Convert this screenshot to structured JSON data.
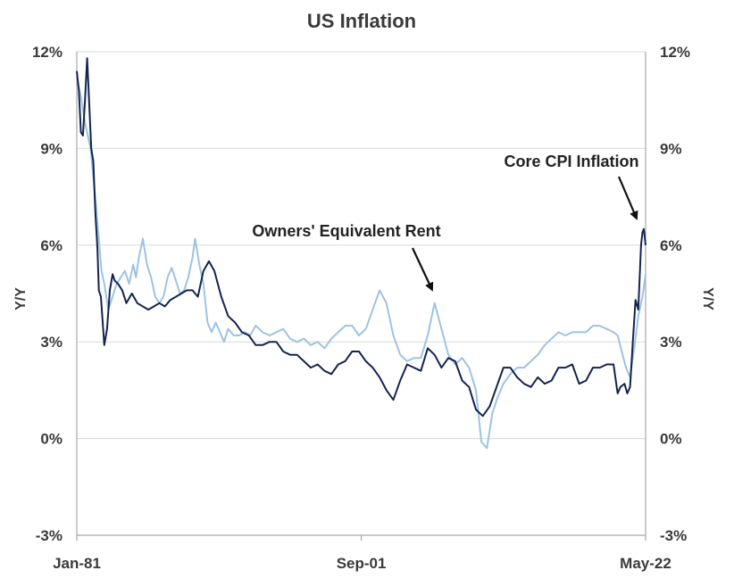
{
  "chart_data": {
    "type": "line",
    "title": "US Inflation",
    "ylabel_left": "Y/Y",
    "ylabel_right": "Y/Y",
    "ylim": [
      -3,
      12
    ],
    "yticks": [
      12,
      9,
      6,
      3,
      0,
      -3
    ],
    "ytick_labels": [
      "12%",
      "9%",
      "6%",
      "3%",
      "0%",
      "-3%"
    ],
    "xlim": [
      1981.0,
      2022.33
    ],
    "xticks": [
      1981.0,
      2001.67,
      2022.33
    ],
    "xtick_labels": [
      "Jan-81",
      "Sep-01",
      "May-22"
    ],
    "grid": "horizontal",
    "colors": {
      "core": "#14244f",
      "oer": "#9dc3e2",
      "grid": "#d9d9d9",
      "axis": "#a6a6a6",
      "text": "#3a3a3a"
    },
    "series": [
      {
        "name": "Core CPI Inflation",
        "x": [
          1981.0,
          1981.15,
          1981.3,
          1981.45,
          1981.6,
          1981.75,
          1981.9,
          1982.05,
          1982.2,
          1982.35,
          1982.5,
          1982.6,
          1982.75,
          1983.0,
          1983.2,
          1983.4,
          1983.6,
          1983.75,
          1984.0,
          1984.3,
          1984.6,
          1985.0,
          1985.4,
          1985.8,
          1986.2,
          1986.6,
          1987.0,
          1987.4,
          1987.8,
          1988.2,
          1988.6,
          1989.0,
          1989.4,
          1989.8,
          1990.2,
          1990.6,
          1991.0,
          1991.5,
          1992.0,
          1992.5,
          1993.0,
          1993.5,
          1994.0,
          1994.5,
          1995.0,
          1995.5,
          1996.0,
          1996.5,
          1997.0,
          1997.5,
          1998.0,
          1998.5,
          1999.0,
          1999.5,
          2000.0,
          2000.5,
          2001.0,
          2001.5,
          2002.0,
          2002.5,
          2003.0,
          2003.5,
          2004.0,
          2004.5,
          2005.0,
          2005.5,
          2006.0,
          2006.5,
          2007.0,
          2007.5,
          2008.0,
          2008.5,
          2009.0,
          2009.5,
          2010.0,
          2010.5,
          2011.0,
          2011.5,
          2012.0,
          2012.5,
          2013.0,
          2013.5,
          2014.0,
          2014.5,
          2015.0,
          2015.5,
          2016.0,
          2016.5,
          2017.0,
          2017.5,
          2018.0,
          2018.5,
          2019.0,
          2019.5,
          2020.0,
          2020.3,
          2020.5,
          2020.8,
          2021.0,
          2021.2,
          2021.4,
          2021.6,
          2021.8,
          2022.0,
          2022.1,
          2022.2,
          2022.33
        ],
        "y": [
          11.4,
          10.8,
          9.5,
          9.4,
          10.5,
          11.8,
          10.4,
          9.0,
          8.6,
          7.0,
          5.9,
          4.6,
          4.4,
          2.9,
          3.4,
          4.6,
          5.1,
          4.9,
          4.8,
          4.6,
          4.2,
          4.5,
          4.2,
          4.1,
          4.0,
          4.1,
          4.2,
          4.1,
          4.3,
          4.4,
          4.5,
          4.6,
          4.6,
          4.4,
          5.2,
          5.5,
          5.2,
          4.4,
          3.8,
          3.6,
          3.3,
          3.2,
          2.9,
          2.9,
          3.0,
          3.0,
          2.7,
          2.6,
          2.6,
          2.4,
          2.2,
          2.3,
          2.1,
          2.0,
          2.3,
          2.4,
          2.7,
          2.7,
          2.4,
          2.2,
          1.9,
          1.5,
          1.2,
          1.8,
          2.3,
          2.2,
          2.1,
          2.8,
          2.6,
          2.2,
          2.5,
          2.4,
          1.8,
          1.6,
          0.9,
          0.7,
          1.0,
          1.6,
          2.2,
          2.2,
          1.9,
          1.7,
          1.6,
          1.9,
          1.7,
          1.8,
          2.2,
          2.2,
          2.3,
          1.7,
          1.8,
          2.2,
          2.2,
          2.3,
          2.3,
          1.4,
          1.6,
          1.7,
          1.4,
          1.6,
          3.0,
          4.3,
          4.0,
          6.0,
          6.4,
          6.5,
          6.0
        ]
      },
      {
        "name": "Owners' Equivalent Rent",
        "x": [
          1981.0,
          1981.3,
          1981.6,
          1982.0,
          1982.4,
          1982.8,
          1983.0,
          1983.3,
          1983.6,
          1983.9,
          1984.2,
          1984.5,
          1984.8,
          1985.1,
          1985.3,
          1985.5,
          1985.8,
          1986.1,
          1986.4,
          1986.7,
          1987.0,
          1987.3,
          1987.6,
          1987.9,
          1988.2,
          1988.5,
          1988.8,
          1989.1,
          1989.4,
          1989.6,
          1989.9,
          1990.2,
          1990.5,
          1990.8,
          1991.1,
          1991.4,
          1991.7,
          1992.0,
          1992.4,
          1992.8,
          1993.2,
          1993.6,
          1994.0,
          1994.5,
          1995.0,
          1995.5,
          1996.0,
          1996.5,
          1997.0,
          1997.5,
          1998.0,
          1998.5,
          1999.0,
          1999.5,
          2000.0,
          2000.5,
          2001.0,
          2001.5,
          2002.0,
          2002.5,
          2003.0,
          2003.5,
          2004.0,
          2004.5,
          2005.0,
          2005.5,
          2006.0,
          2006.5,
          2007.0,
          2007.5,
          2008.0,
          2008.5,
          2009.0,
          2009.5,
          2010.0,
          2010.4,
          2010.8,
          2011.2,
          2011.6,
          2012.0,
          2012.5,
          2013.0,
          2013.5,
          2014.0,
          2014.5,
          2015.0,
          2015.5,
          2016.0,
          2016.5,
          2017.0,
          2017.5,
          2018.0,
          2018.5,
          2019.0,
          2019.5,
          2020.0,
          2020.3,
          2020.6,
          2020.9,
          2021.2,
          2021.5,
          2021.8,
          2022.1,
          2022.33
        ],
        "y": [
          11.2,
          10.6,
          9.8,
          9.0,
          7.2,
          5.2,
          4.8,
          4.0,
          4.4,
          4.8,
          5.0,
          5.2,
          4.8,
          5.4,
          5.0,
          5.6,
          6.2,
          5.4,
          5.0,
          4.4,
          4.2,
          4.4,
          5.0,
          5.3,
          4.9,
          4.5,
          4.6,
          5.0,
          5.6,
          6.2,
          5.4,
          4.8,
          3.6,
          3.3,
          3.6,
          3.3,
          3.0,
          3.4,
          3.2,
          3.2,
          3.3,
          3.2,
          3.5,
          3.3,
          3.2,
          3.3,
          3.4,
          3.1,
          3.0,
          3.1,
          2.9,
          3.0,
          2.8,
          3.1,
          3.3,
          3.5,
          3.5,
          3.2,
          3.4,
          4.0,
          4.6,
          4.2,
          3.2,
          2.6,
          2.4,
          2.5,
          2.5,
          3.2,
          4.2,
          3.4,
          2.6,
          2.3,
          2.5,
          2.2,
          1.5,
          -0.1,
          -0.3,
          0.8,
          1.3,
          1.7,
          2.0,
          2.2,
          2.2,
          2.4,
          2.6,
          2.9,
          3.1,
          3.3,
          3.2,
          3.3,
          3.3,
          3.3,
          3.5,
          3.5,
          3.4,
          3.3,
          3.2,
          2.7,
          2.2,
          1.9,
          2.8,
          3.8,
          4.4,
          5.1
        ]
      }
    ],
    "annotations": [
      {
        "text": "Owners' Equivalent Rent",
        "points_to": {
          "x": 2007.0,
          "y": 4.4
        }
      },
      {
        "text": "Core CPI Inflation",
        "points_to": {
          "x": 2022.1,
          "y": 6.5
        }
      }
    ]
  }
}
